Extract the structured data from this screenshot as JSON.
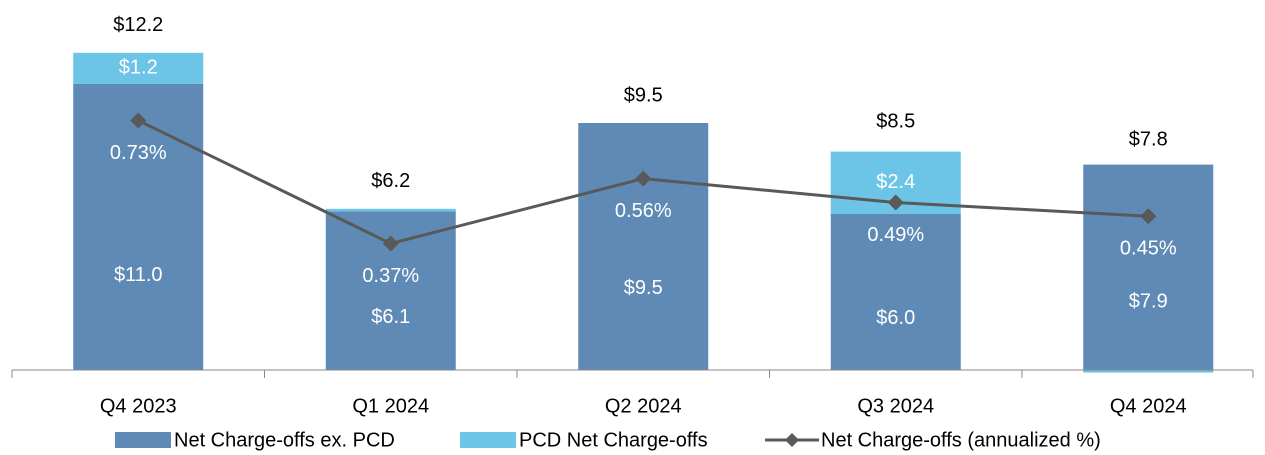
{
  "chart_data": {
    "type": "bar",
    "categories": [
      "Q4 2023",
      "Q1 2024",
      "Q2 2024",
      "Q3 2024",
      "Q4 2024"
    ],
    "stacked": true,
    "series": [
      {
        "name": "Net Charge-offs ex. PCD",
        "color": "#5f8ab5",
        "values": [
          11.0,
          6.1,
          9.5,
          6.0,
          7.9
        ],
        "value_labels": [
          "$11.0",
          "$6.1",
          "$9.5",
          "$6.0",
          "$7.9"
        ]
      },
      {
        "name": "PCD Net Charge-offs",
        "color": "#6cc4e6",
        "values": [
          1.2,
          0.1,
          0,
          2.4,
          -0.1
        ],
        "value_labels": [
          "$1.2",
          null,
          null,
          "$2.4",
          null
        ]
      },
      {
        "name": "Net Charge-offs (annualized %)",
        "type": "line",
        "axis": "y2",
        "color": "#595959",
        "values": [
          0.73,
          0.37,
          0.56,
          0.49,
          0.45
        ],
        "value_labels": [
          "0.73%",
          "0.37%",
          "0.56%",
          "0.49%",
          "0.45%"
        ]
      }
    ],
    "totals": [
      12.2,
      6.2,
      9.5,
      8.5,
      7.8
    ],
    "total_labels": [
      "$12.2",
      "$6.2",
      "$9.5",
      "$8.5",
      "$7.8"
    ],
    "ylim": [
      0,
      14
    ],
    "y2lim": [
      0,
      1.065
    ],
    "legend": "bottom"
  }
}
